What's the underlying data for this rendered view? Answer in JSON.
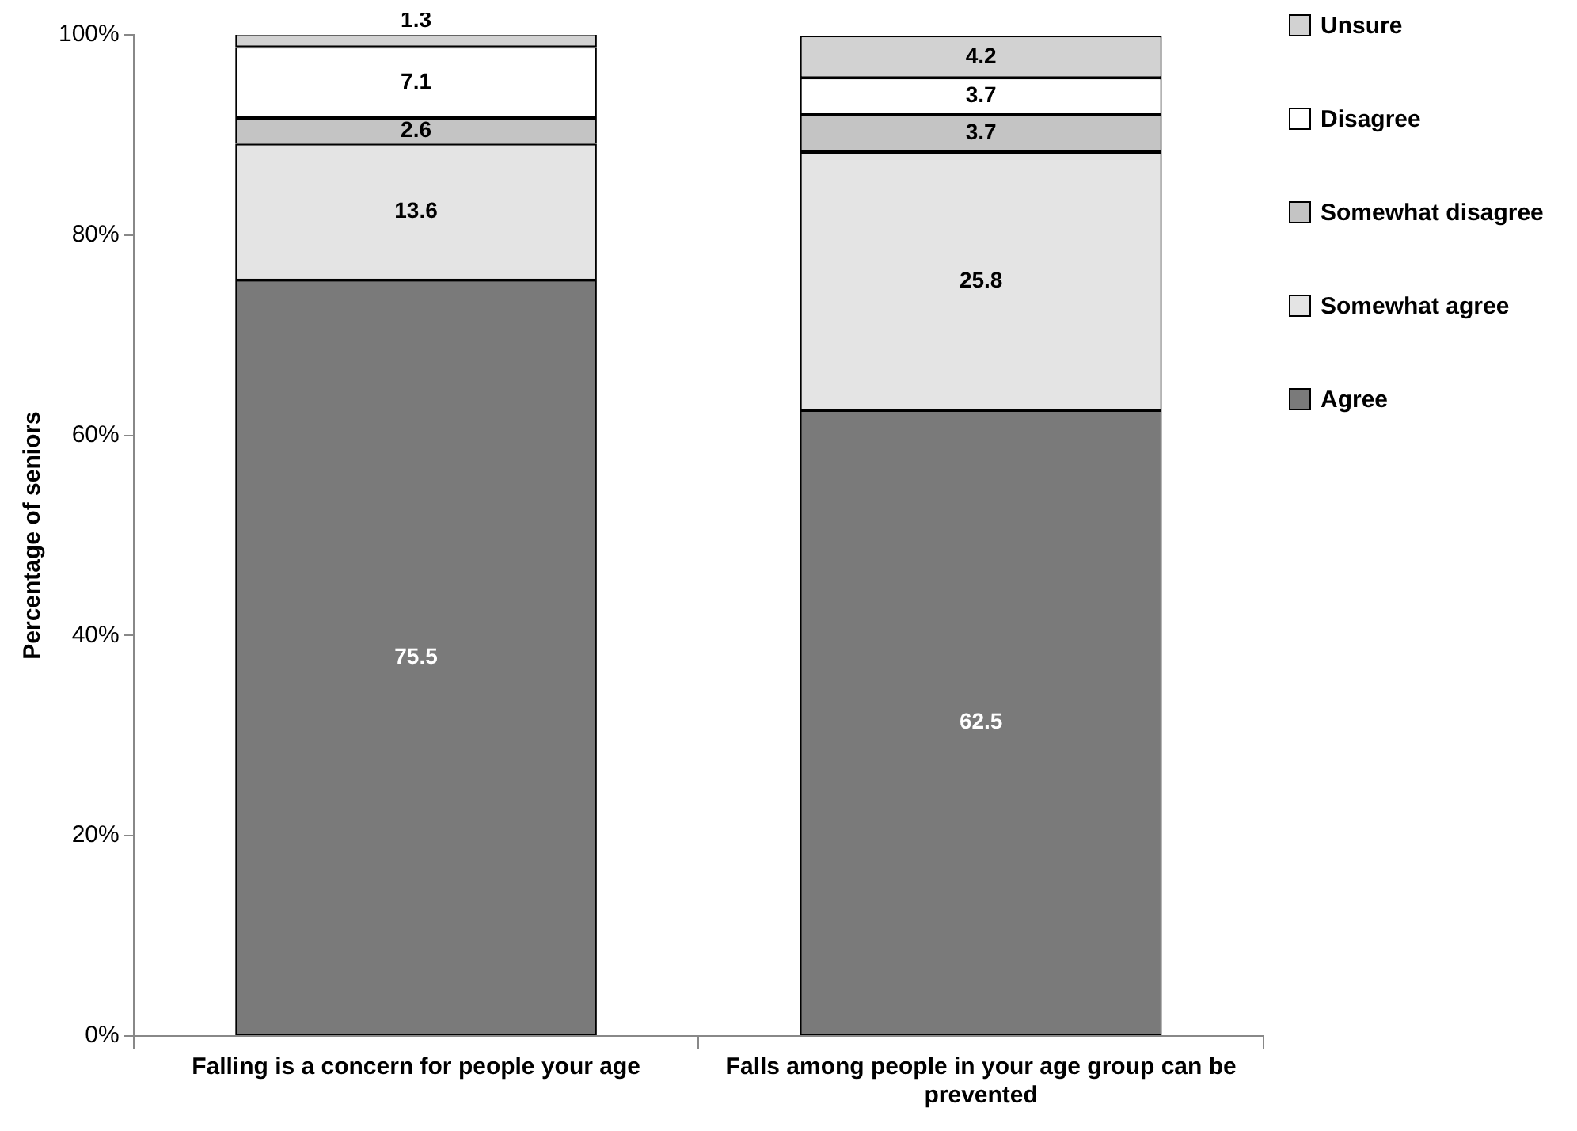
{
  "chart_data": {
    "type": "bar",
    "stacked": true,
    "ylabel": "Percentage of seniors",
    "categories": [
      "Falling is a concern for people your age",
      "Falls among people in your age group can be prevented"
    ],
    "series": [
      {
        "name": "Agree",
        "color": "#7a7a7a",
        "values": [
          75.5,
          62.5
        ]
      },
      {
        "name": "Somewhat agree",
        "color": "#e4e4e4",
        "values": [
          13.6,
          25.8
        ]
      },
      {
        "name": "Somewhat disagree",
        "color": "#c4c4c4",
        "values": [
          2.6,
          3.7
        ]
      },
      {
        "name": "Disagree",
        "color": "#ffffff",
        "values": [
          7.1,
          3.7
        ]
      },
      {
        "name": "Unsure",
        "color": "#d2d2d2",
        "values": [
          1.3,
          4.2
        ]
      }
    ],
    "ylim": [
      0,
      100
    ],
    "yticks": [
      {
        "value": 0,
        "label": "0%"
      },
      {
        "value": 20,
        "label": "20%"
      },
      {
        "value": 40,
        "label": "40%"
      },
      {
        "value": 60,
        "label": "60%"
      },
      {
        "value": 80,
        "label": "80%"
      },
      {
        "value": 100,
        "label": "100%"
      }
    ],
    "grid": false,
    "legend": "right",
    "data_labels": true
  }
}
